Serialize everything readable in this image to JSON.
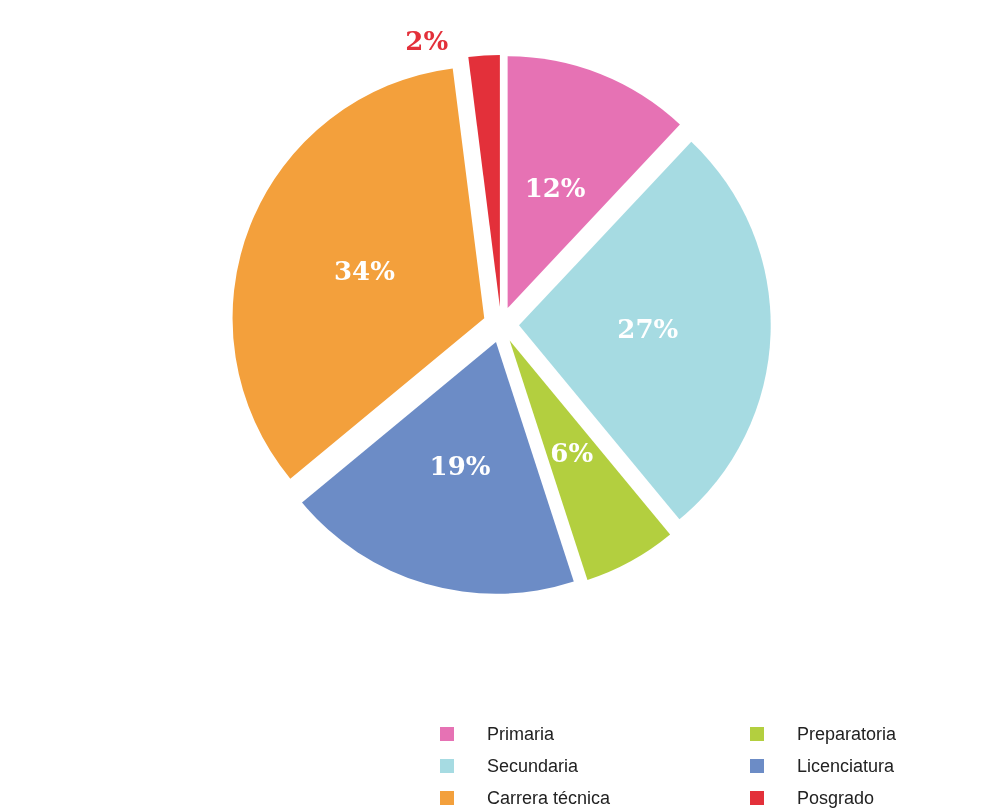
{
  "chart_data": {
    "type": "pie",
    "categories": [
      "Primaria",
      "Secundaria",
      "Preparatoria",
      "Licenciatura",
      "Carrera técnica",
      "Posgrado"
    ],
    "values": [
      12,
      27,
      6,
      19,
      34,
      2
    ],
    "colors": [
      "#e672b4",
      "#a6dbe2",
      "#b3cf3f",
      "#6c8cc6",
      "#f3a03c",
      "#e3303a"
    ],
    "value_labels": [
      "12%",
      "27%",
      "6%",
      "19%",
      "34%",
      "2%"
    ],
    "legend": "bottom right"
  }
}
